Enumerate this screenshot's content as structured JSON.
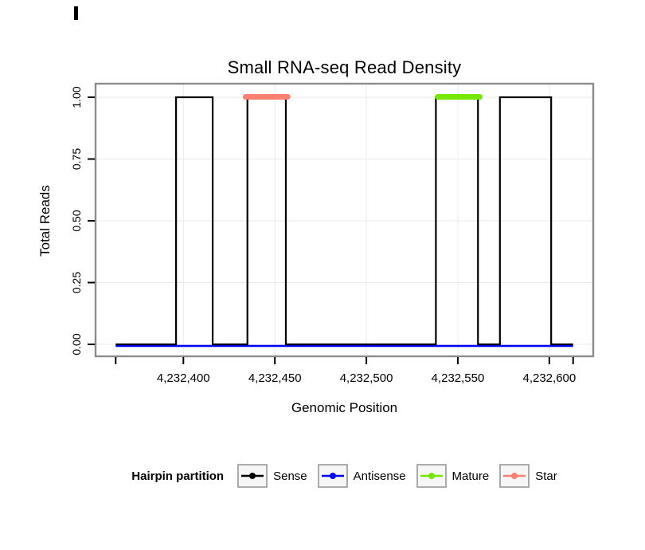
{
  "title": "Small RNA-seq Read Density",
  "chart_data": {
    "type": "line",
    "variant": "step-density",
    "title": "Small RNA-seq Read Density",
    "xlabel": "Genomic Position",
    "ylabel": "Total Reads",
    "xlim": [
      4232352,
      4232624
    ],
    "ylim": [
      0,
      1.0
    ],
    "grid": true,
    "x_ticks": [
      {
        "value": 4232400,
        "label": "4,232,400"
      },
      {
        "value": 4232450,
        "label": "4,232,450"
      },
      {
        "value": 4232500,
        "label": "4,232,500"
      },
      {
        "value": 4232550,
        "label": "4,232,550"
      },
      {
        "value": 4232600,
        "label": "4,232,600"
      }
    ],
    "x_end_ticks": [
      4232363,
      4232613
    ],
    "y_ticks": [
      {
        "value": 0.0,
        "label": "0.00"
      },
      {
        "value": 0.25,
        "label": "0.25"
      },
      {
        "value": 0.5,
        "label": "0.50"
      },
      {
        "value": 0.75,
        "label": "0.75"
      },
      {
        "value": 1.0,
        "label": "1.00"
      }
    ],
    "series": [
      {
        "name": "Sense",
        "style": "step",
        "color": "#000000",
        "x_range": [
          4232363,
          4232613
        ],
        "base_value": 0,
        "peak_value": 1,
        "pulses": [
          [
            4232396,
            4232416
          ],
          [
            4232435,
            4232456
          ],
          [
            4232538,
            4232561
          ],
          [
            4232573,
            4232601
          ]
        ]
      },
      {
        "name": "Antisense",
        "style": "flat-line",
        "color": "#0000FF",
        "x_range": [
          4232363,
          4232613
        ],
        "value": 0
      },
      {
        "name": "Mature",
        "style": "segment",
        "color": "#76E800",
        "x_range": [
          4232539,
          4232562
        ],
        "value": 1
      },
      {
        "name": "Star",
        "style": "segment",
        "color": "#FA8072",
        "x_range": [
          4232434,
          4232457
        ],
        "value": 1
      }
    ],
    "legend_position": "bottom"
  },
  "legend": {
    "title": "Hairpin partition",
    "items": [
      {
        "label": "Sense",
        "color": "#000000"
      },
      {
        "label": "Antisense",
        "color": "#0000FF"
      },
      {
        "label": "Mature",
        "color": "#76E800"
      },
      {
        "label": "Star",
        "color": "#FA8072"
      }
    ]
  },
  "colors": {
    "background": "#FFFFFF",
    "panel_border": "#8C8C8C",
    "gridline": "#EAEAEA",
    "tick": "#000000",
    "text": "#000000",
    "legend_key_border": "#ABABAB",
    "legend_key_bg": "#F6F6F6"
  }
}
